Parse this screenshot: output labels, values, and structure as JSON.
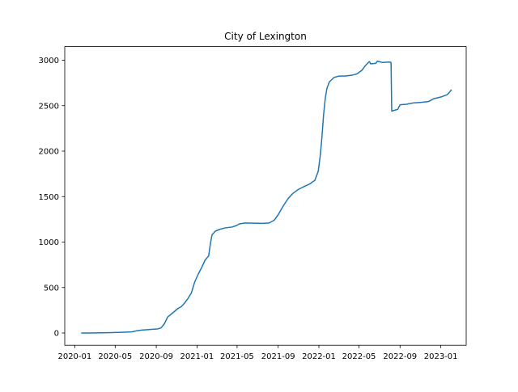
{
  "chart_data": {
    "type": "line",
    "title": "City of Lexington",
    "xlabel": "",
    "ylabel": "",
    "x_axis_type": "date",
    "xlim": [
      "2019-12-02",
      "2023-03-18"
    ],
    "ylim": [
      -135,
      3150
    ],
    "x_ticks": [
      "2020-01-01",
      "2020-05-01",
      "2020-09-01",
      "2021-01-01",
      "2021-05-01",
      "2021-09-01",
      "2022-01-01",
      "2022-05-01",
      "2022-09-01",
      "2023-01-01"
    ],
    "x_tick_labels": [
      "2020-01",
      "2020-05",
      "2020-09",
      "2021-01",
      "2021-05",
      "2021-09",
      "2022-01",
      "2022-05",
      "2022-09",
      "2023-01"
    ],
    "y_ticks": [
      0,
      500,
      1000,
      1500,
      2000,
      2500,
      3000
    ],
    "y_tick_labels": [
      "0",
      "500",
      "1000",
      "1500",
      "2000",
      "2500",
      "3000"
    ],
    "grid": false,
    "legend": "none",
    "series": [
      {
        "color": "#1f77b4",
        "points": [
          [
            "2020-01-22",
            0
          ],
          [
            "2020-02-20",
            0
          ],
          [
            "2020-03-20",
            2
          ],
          [
            "2020-04-20",
            4
          ],
          [
            "2020-05-20",
            8
          ],
          [
            "2020-06-20",
            12
          ],
          [
            "2020-07-05",
            25
          ],
          [
            "2020-07-20",
            32
          ],
          [
            "2020-08-10",
            38
          ],
          [
            "2020-08-25",
            42
          ],
          [
            "2020-09-05",
            45
          ],
          [
            "2020-09-15",
            55
          ],
          [
            "2020-09-25",
            100
          ],
          [
            "2020-10-05",
            175
          ],
          [
            "2020-10-20",
            220
          ],
          [
            "2020-11-05",
            270
          ],
          [
            "2020-11-15",
            290
          ],
          [
            "2020-11-25",
            330
          ],
          [
            "2020-12-05",
            380
          ],
          [
            "2020-12-15",
            440
          ],
          [
            "2020-12-25",
            560
          ],
          [
            "2021-01-05",
            650
          ],
          [
            "2021-01-15",
            720
          ],
          [
            "2021-01-25",
            800
          ],
          [
            "2021-02-05",
            850
          ],
          [
            "2021-02-10",
            980
          ],
          [
            "2021-02-15",
            1080
          ],
          [
            "2021-02-25",
            1120
          ],
          [
            "2021-03-10",
            1140
          ],
          [
            "2021-03-25",
            1155
          ],
          [
            "2021-04-15",
            1165
          ],
          [
            "2021-04-28",
            1180
          ],
          [
            "2021-05-08",
            1200
          ],
          [
            "2021-05-25",
            1210
          ],
          [
            "2021-06-20",
            1208
          ],
          [
            "2021-07-15",
            1206
          ],
          [
            "2021-08-05",
            1210
          ],
          [
            "2021-08-20",
            1240
          ],
          [
            "2021-09-01",
            1300
          ],
          [
            "2021-09-15",
            1390
          ],
          [
            "2021-10-01",
            1480
          ],
          [
            "2021-10-15",
            1535
          ],
          [
            "2021-11-01",
            1580
          ],
          [
            "2021-11-20",
            1615
          ],
          [
            "2021-12-05",
            1640
          ],
          [
            "2021-12-20",
            1680
          ],
          [
            "2021-12-30",
            1780
          ],
          [
            "2022-01-05",
            1950
          ],
          [
            "2022-01-10",
            2150
          ],
          [
            "2022-01-15",
            2400
          ],
          [
            "2022-01-20",
            2580
          ],
          [
            "2022-01-25",
            2690
          ],
          [
            "2022-02-01",
            2760
          ],
          [
            "2022-02-15",
            2810
          ],
          [
            "2022-03-01",
            2825
          ],
          [
            "2022-03-20",
            2825
          ],
          [
            "2022-04-10",
            2835
          ],
          [
            "2022-04-25",
            2850
          ],
          [
            "2022-05-10",
            2890
          ],
          [
            "2022-05-20",
            2940
          ],
          [
            "2022-06-01",
            2985
          ],
          [
            "2022-06-05",
            2960
          ],
          [
            "2022-06-20",
            2965
          ],
          [
            "2022-06-25",
            2990
          ],
          [
            "2022-07-10",
            2975
          ],
          [
            "2022-08-01",
            2980
          ],
          [
            "2022-08-05",
            2975
          ],
          [
            "2022-08-07",
            2440
          ],
          [
            "2022-08-25",
            2460
          ],
          [
            "2022-09-01",
            2510
          ],
          [
            "2022-09-20",
            2515
          ],
          [
            "2022-10-10",
            2530
          ],
          [
            "2022-11-01",
            2535
          ],
          [
            "2022-11-25",
            2545
          ],
          [
            "2022-12-10",
            2575
          ],
          [
            "2023-01-01",
            2595
          ],
          [
            "2023-01-20",
            2620
          ],
          [
            "2023-02-01",
            2670
          ]
        ]
      }
    ]
  }
}
